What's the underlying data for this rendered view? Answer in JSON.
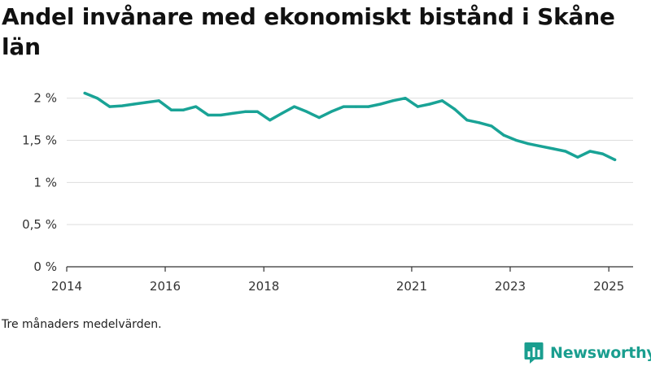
{
  "header": {
    "title": "Andel invånare med ekonomiskt bistånd i Skåne län"
  },
  "footer": {
    "note": "Tre månaders medelvärden.",
    "brand": "Newsworthy",
    "brand_icon": "newsworthy-logo-icon"
  },
  "colors": {
    "line": "#19a396",
    "grid": "#dddddd",
    "axis": "#333333",
    "brand": "#1a9e8f"
  },
  "chart_data": {
    "type": "line",
    "title": "Andel invånare med ekonomiskt bistånd i Skåne län",
    "xlabel": "",
    "ylabel": "",
    "grid": true,
    "x_ticks": [
      {
        "value": "2014-01-01",
        "label": "2014"
      },
      {
        "value": "2016-01-01",
        "label": "2016"
      },
      {
        "value": "2018-01-01",
        "label": "2018"
      },
      {
        "value": "2021-01-01",
        "label": "2021"
      },
      {
        "value": "2023-01-01",
        "label": "2023"
      },
      {
        "value": "2025-01-01",
        "label": "2025"
      }
    ],
    "y_ticks": [
      {
        "value": 0,
        "label": "0 %"
      },
      {
        "value": 0.5,
        "label": "0,5 %"
      },
      {
        "value": 1,
        "label": "1 %"
      },
      {
        "value": 1.5,
        "label": "1,5 %"
      },
      {
        "value": 2,
        "label": "2 %"
      }
    ],
    "xlim": [
      "2014-01-01",
      "2025-06-30"
    ],
    "ylim": [
      0,
      2.2
    ],
    "series": [
      {
        "x": [
          "2014-05-15",
          "2014-08-15",
          "2014-11-15",
          "2015-02-15",
          "2015-05-15",
          "2015-08-15",
          "2015-11-15",
          "2016-02-15",
          "2016-05-15",
          "2016-08-15",
          "2016-11-15",
          "2017-02-15",
          "2017-05-15",
          "2017-08-15",
          "2017-11-15",
          "2018-02-15",
          "2018-05-15",
          "2018-08-15",
          "2018-11-15",
          "2019-02-15",
          "2019-05-15",
          "2019-08-15",
          "2019-11-15",
          "2020-02-15",
          "2020-05-15",
          "2020-08-15",
          "2020-11-15",
          "2021-02-15",
          "2021-05-15",
          "2021-08-15",
          "2021-11-15",
          "2022-02-15",
          "2022-05-15",
          "2022-08-15",
          "2022-11-15",
          "2023-02-15",
          "2023-05-15",
          "2023-08-15",
          "2023-11-15",
          "2024-02-15",
          "2024-05-15",
          "2024-08-15",
          "2024-11-15",
          "2025-02-15"
        ],
        "values": [
          2.06,
          2.0,
          1.9,
          1.91,
          1.93,
          1.95,
          1.97,
          1.86,
          1.86,
          1.9,
          1.8,
          1.8,
          1.82,
          1.84,
          1.84,
          1.74,
          1.82,
          1.9,
          1.84,
          1.77,
          1.84,
          1.9,
          1.9,
          1.9,
          1.93,
          1.97,
          2.0,
          1.9,
          1.93,
          1.97,
          1.87,
          1.74,
          1.71,
          1.67,
          1.56,
          1.5,
          1.46,
          1.43,
          1.4,
          1.37,
          1.3,
          1.37,
          1.34,
          1.27
        ]
      }
    ]
  }
}
